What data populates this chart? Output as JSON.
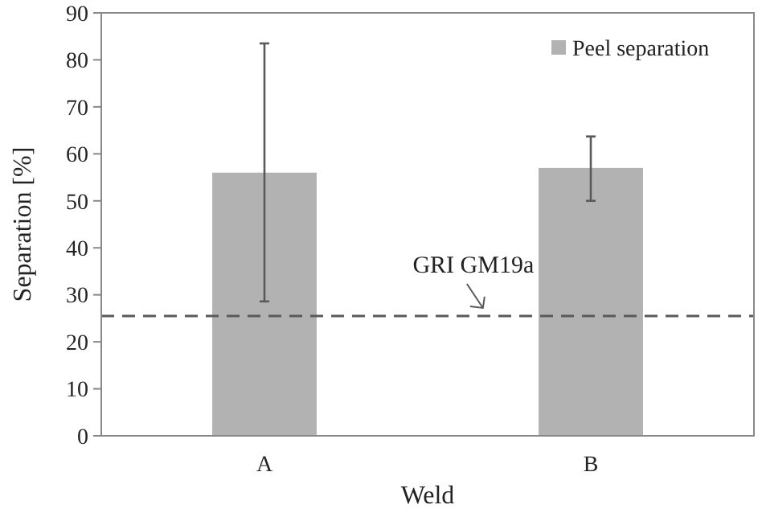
{
  "chart_data": {
    "type": "bar",
    "xlabel": "Weld",
    "ylabel": "Separation [%]",
    "categories": [
      "A",
      "B"
    ],
    "series": [
      {
        "name": "Peel separation",
        "color": "#b2b2b2",
        "values": [
          56,
          57
        ],
        "errors": [
          [
            28.6,
            83.5
          ],
          [
            50,
            63.7
          ]
        ]
      }
    ],
    "ylim": [
      0,
      90
    ],
    "yticks": [
      0,
      10,
      20,
      30,
      40,
      50,
      60,
      70,
      80,
      90
    ],
    "ref_lines": [
      {
        "axis": "y",
        "value": 25.5,
        "label": "GRI GM19a",
        "color": "#595959",
        "line_style": "dashed"
      }
    ],
    "legend": "top right",
    "grid": false
  }
}
